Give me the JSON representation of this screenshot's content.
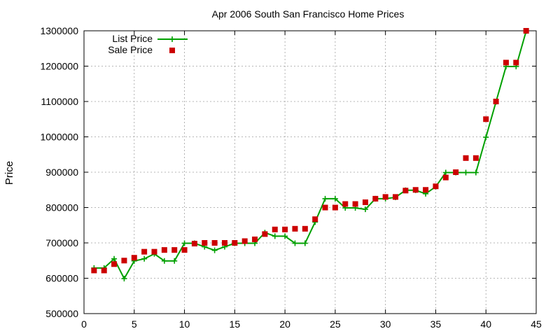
{
  "chart_data": {
    "type": "line",
    "title": "Apr 2006 South San Francisco Home Prices",
    "xlabel": "",
    "ylabel": "Price",
    "xlim": [
      0,
      45
    ],
    "ylim": [
      500000,
      1300000
    ],
    "x_ticks": [
      0,
      5,
      10,
      15,
      20,
      25,
      30,
      35,
      40,
      45
    ],
    "y_ticks": [
      500000,
      600000,
      700000,
      800000,
      900000,
      1000000,
      1100000,
      1200000,
      1300000
    ],
    "grid": true,
    "legend_position": "top-left",
    "series": [
      {
        "name": "List Price",
        "style": "line-with-plus-markers",
        "color": "#00a000",
        "x": [
          1,
          2,
          3,
          4,
          5,
          6,
          7,
          8,
          9,
          10,
          11,
          12,
          13,
          14,
          15,
          16,
          17,
          18,
          19,
          20,
          21,
          22,
          23,
          24,
          25,
          26,
          27,
          28,
          29,
          30,
          31,
          32,
          33,
          34,
          35,
          36,
          37,
          38,
          39,
          40,
          41,
          42,
          43,
          44
        ],
        "values": [
          629000,
          629000,
          655000,
          599000,
          649000,
          655000,
          669000,
          649000,
          649000,
          699000,
          699000,
          689000,
          679000,
          689000,
          699000,
          699000,
          699000,
          729000,
          719000,
          719000,
          699000,
          699000,
          759000,
          825000,
          825000,
          799000,
          799000,
          795000,
          825000,
          825000,
          829000,
          849000,
          849000,
          839000,
          859000,
          899000,
          899000,
          899000,
          899000,
          999000,
          1099000,
          1199000,
          1199000,
          1299000
        ]
      },
      {
        "name": "Sale Price",
        "style": "square-markers",
        "color": "#cc0000",
        "x": [
          1,
          2,
          3,
          4,
          5,
          6,
          7,
          8,
          9,
          10,
          11,
          12,
          13,
          14,
          15,
          16,
          17,
          18,
          19,
          20,
          21,
          22,
          23,
          24,
          25,
          26,
          27,
          28,
          29,
          30,
          31,
          32,
          33,
          34,
          35,
          36,
          37,
          38,
          39,
          40,
          41,
          42,
          43,
          44
        ],
        "values": [
          622000,
          622000,
          640000,
          650000,
          658000,
          675000,
          675000,
          680000,
          680000,
          680000,
          698000,
          700000,
          700000,
          700000,
          700000,
          705000,
          710000,
          725000,
          738000,
          738000,
          740000,
          740000,
          767000,
          800000,
          800000,
          810000,
          810000,
          815000,
          825000,
          830000,
          830000,
          848000,
          850000,
          850000,
          860000,
          885000,
          900000,
          940000,
          940000,
          1050000,
          1100000,
          1210000,
          1210000,
          1300000
        ]
      }
    ]
  }
}
